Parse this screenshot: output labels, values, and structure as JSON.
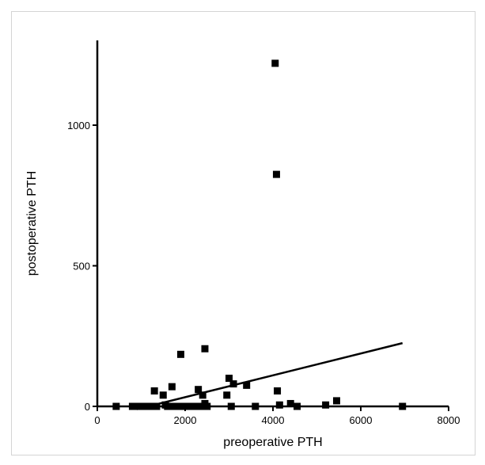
{
  "chart_data": {
    "type": "scatter",
    "title": "",
    "xlabel": "preoperative PTH",
    "ylabel": "postoperative PTH",
    "xlim": [
      0,
      8000
    ],
    "ylim": [
      0,
      1300
    ],
    "x_ticks": [
      0,
      2000,
      4000,
      6000,
      8000
    ],
    "y_ticks": [
      0,
      500,
      1000
    ],
    "grid": false,
    "legend": "none",
    "colors": {
      "marker": "#000000",
      "axis": "#000000",
      "fit_line": "#000000"
    },
    "series": [
      {
        "points": [
          [
            430,
            0
          ],
          [
            800,
            0
          ],
          [
            900,
            0
          ],
          [
            1000,
            0
          ],
          [
            1050,
            0
          ],
          [
            1100,
            0
          ],
          [
            1200,
            0
          ],
          [
            1300,
            55
          ],
          [
            1350,
            0
          ],
          [
            1500,
            40
          ],
          [
            1550,
            5
          ],
          [
            1600,
            0
          ],
          [
            1700,
            70
          ],
          [
            1750,
            0
          ],
          [
            1800,
            0
          ],
          [
            1900,
            185
          ],
          [
            1950,
            0
          ],
          [
            2000,
            0
          ],
          [
            2100,
            0
          ],
          [
            2200,
            0
          ],
          [
            2300,
            60
          ],
          [
            2350,
            0
          ],
          [
            2400,
            40
          ],
          [
            2450,
            10
          ],
          [
            2450,
            205
          ],
          [
            2500,
            0
          ],
          [
            2950,
            40
          ],
          [
            3000,
            100
          ],
          [
            3050,
            0
          ],
          [
            3100,
            80
          ],
          [
            3400,
            75
          ],
          [
            3600,
            0
          ],
          [
            4050,
            1220
          ],
          [
            4080,
            825
          ],
          [
            4100,
            55
          ],
          [
            4150,
            5
          ],
          [
            4400,
            10
          ],
          [
            4550,
            0
          ],
          [
            5200,
            5
          ],
          [
            5450,
            20
          ],
          [
            6950,
            0
          ]
        ]
      }
    ],
    "fit_line": {
      "x": [
        900,
        6950
      ],
      "y": [
        -10,
        225
      ]
    }
  }
}
